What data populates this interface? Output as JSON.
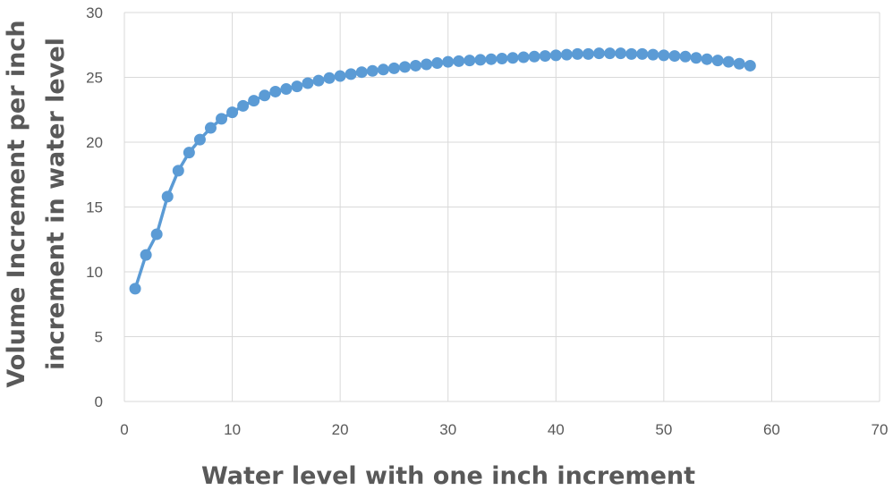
{
  "chart_data": {
    "type": "line",
    "title": "",
    "xlabel": "Water level with one inch increment",
    "ylabel_lines": [
      "Volume Increment per inch",
      "increment in water level"
    ],
    "xlim": [
      0,
      70
    ],
    "ylim": [
      0,
      30
    ],
    "x_ticks": [
      0,
      10,
      20,
      30,
      40,
      50,
      60,
      70
    ],
    "y_ticks": [
      0,
      5,
      10,
      15,
      20,
      25,
      30
    ],
    "grid": true,
    "legend": "none",
    "series": [
      {
        "color": "#5B9BD5",
        "marker": "circle",
        "x": [
          1,
          2,
          3,
          4,
          5,
          6,
          7,
          8,
          9,
          10,
          11,
          12,
          13,
          14,
          15,
          16,
          17,
          18,
          19,
          20,
          21,
          22,
          23,
          24,
          25,
          26,
          27,
          28,
          29,
          30,
          31,
          32,
          33,
          34,
          35,
          36,
          37,
          38,
          39,
          40,
          41,
          42,
          43,
          44,
          45,
          46,
          47,
          48,
          49,
          50,
          51,
          52,
          53,
          54,
          55,
          56,
          57,
          58
        ],
        "y": [
          8.7,
          11.3,
          12.9,
          15.8,
          17.8,
          19.2,
          20.2,
          21.1,
          21.8,
          22.3,
          22.8,
          23.2,
          23.6,
          23.9,
          24.1,
          24.3,
          24.55,
          24.75,
          24.95,
          25.1,
          25.25,
          25.4,
          25.5,
          25.6,
          25.7,
          25.8,
          25.9,
          26.0,
          26.1,
          26.2,
          26.25,
          26.3,
          26.35,
          26.4,
          26.45,
          26.5,
          26.55,
          26.6,
          26.65,
          26.7,
          26.75,
          26.8,
          26.8,
          26.85,
          26.85,
          26.85,
          26.8,
          26.8,
          26.75,
          26.7,
          26.65,
          26.6,
          26.5,
          26.4,
          26.3,
          26.2,
          26.05,
          25.9
        ]
      }
    ]
  }
}
